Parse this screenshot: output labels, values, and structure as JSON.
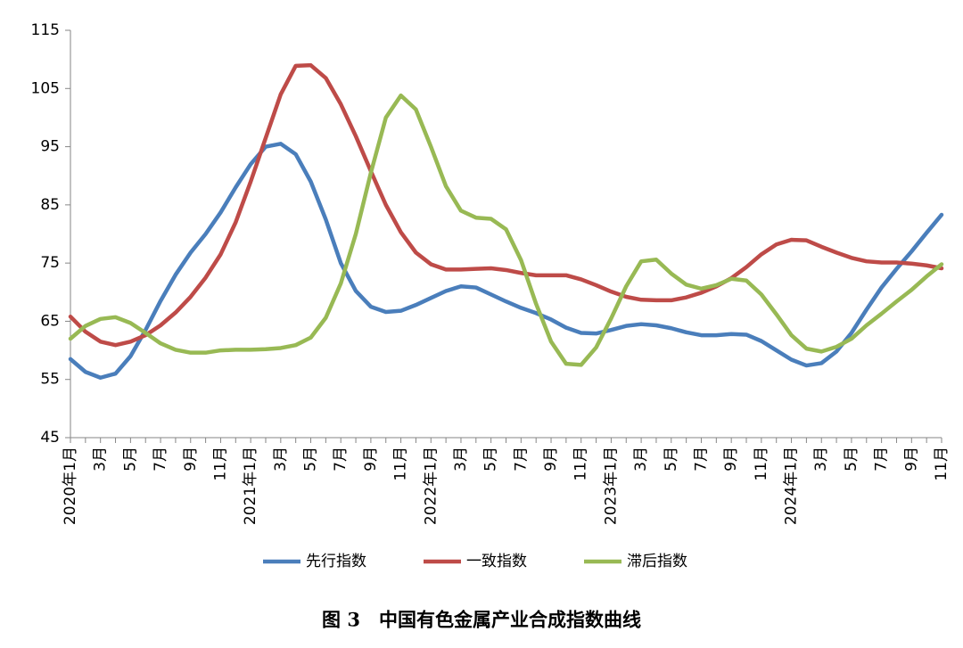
{
  "chart_data": {
    "type": "line",
    "title": "图 3　中国有色金属产业合成指数曲线",
    "categories": [
      "2020年1月",
      null,
      "3月",
      null,
      "5月",
      null,
      "7月",
      null,
      "9月",
      null,
      "11月",
      null,
      "2021年1月",
      null,
      "3月",
      null,
      "5月",
      null,
      "7月",
      null,
      "9月",
      null,
      "11月",
      null,
      "2022年1月",
      null,
      "3月",
      null,
      "5月",
      null,
      "7月",
      null,
      "9月",
      null,
      "11月",
      null,
      "2023年1月",
      null,
      "3月",
      null,
      "5月",
      null,
      "7月",
      null,
      "9月",
      null,
      "11月",
      null,
      "2024年1月",
      null,
      "3月",
      null,
      "5月",
      null,
      "7月",
      null,
      "9月",
      null,
      "11月"
    ],
    "series": [
      {
        "name": "先行指数",
        "color": "#4a7ebb",
        "values": [
          58.5,
          56.3,
          55.3,
          56,
          59,
          63.5,
          68.5,
          73,
          76.8,
          80,
          83.7,
          88,
          92,
          95,
          95.5,
          93.7,
          89,
          82.5,
          75,
          70.2,
          67.5,
          66.6,
          66.8,
          67.8,
          69,
          70.2,
          71,
          70.8,
          69.6,
          68.4,
          67.3,
          66.4,
          65.3,
          63.9,
          63,
          62.9,
          63.5,
          64.2,
          64.5,
          64.3,
          63.8,
          63.1,
          62.6,
          62.6,
          62.8,
          62.7,
          61.6,
          60,
          58.4,
          57.4,
          57.8,
          59.8,
          63,
          67,
          70.8,
          74,
          77,
          80.2,
          83.3
        ]
      },
      {
        "name": "一致指数",
        "color": "#be4b48",
        "values": [
          65.8,
          63.2,
          61.5,
          60.9,
          61.5,
          62.6,
          64.3,
          66.5,
          69.2,
          72.5,
          76.5,
          82,
          89,
          96.5,
          104,
          108.9,
          109,
          106.8,
          102.3,
          96.8,
          90.8,
          85,
          80.3,
          76.8,
          74.8,
          73.9,
          73.9,
          74,
          74.1,
          73.8,
          73.3,
          72.9,
          72.9,
          72.9,
          72.2,
          71.2,
          70.1,
          69.2,
          68.7,
          68.6,
          68.6,
          69.1,
          69.9,
          71,
          72.4,
          74.3,
          76.5,
          78.2,
          79,
          78.9,
          77.8,
          76.8,
          75.9,
          75.3,
          75.1,
          75.1,
          74.9,
          74.6,
          74.1
        ]
      },
      {
        "name": "滞后指数",
        "color": "#98b954",
        "values": [
          62,
          64.2,
          65.4,
          65.7,
          64.7,
          63,
          61.2,
          60.1,
          59.6,
          59.6,
          60,
          60.1,
          60.1,
          60.2,
          60.4,
          60.9,
          62.2,
          65.6,
          71.5,
          80,
          90.5,
          100,
          103.8,
          101.4,
          95,
          88.2,
          84,
          82.8,
          82.6,
          80.8,
          75.5,
          68,
          61.5,
          57.7,
          57.5,
          60.5,
          65.5,
          71,
          75.3,
          75.6,
          73.2,
          71.3,
          70.6,
          71.2,
          72.3,
          72,
          69.6,
          66.2,
          62.6,
          60.3,
          59.8,
          60.6,
          62,
          64.3,
          66.3,
          68.4,
          70.4,
          72.7,
          74.8
        ]
      }
    ],
    "ylim": [
      45,
      115
    ],
    "yticks": [
      45,
      55,
      65,
      75,
      85,
      95,
      105,
      115
    ],
    "grid": false,
    "legend": "bottom"
  }
}
